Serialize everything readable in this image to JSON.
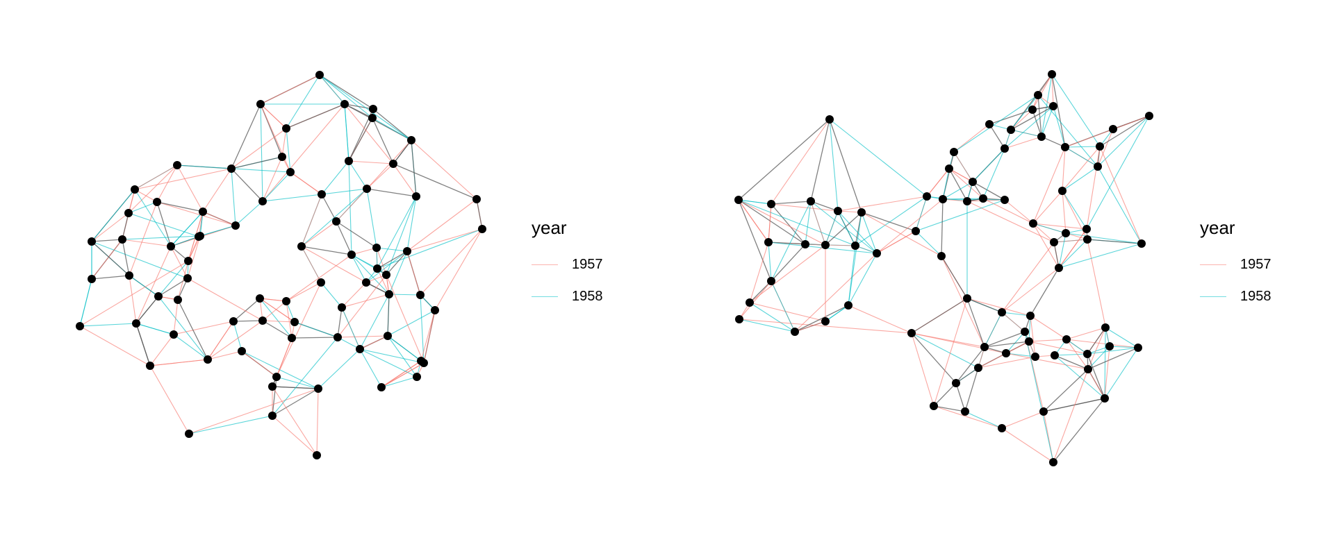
{
  "legend": {
    "title": "year",
    "entries": [
      {
        "label": "1957",
        "color": "#F8766D"
      },
      {
        "label": "1958",
        "color": "#00BFC4"
      }
    ]
  },
  "colors": {
    "node": "#000000",
    "edge_1957": "#F8766D",
    "edge_1958": "#00BFC4",
    "edge_both": "#555555",
    "background": "#ffffff"
  }
}
